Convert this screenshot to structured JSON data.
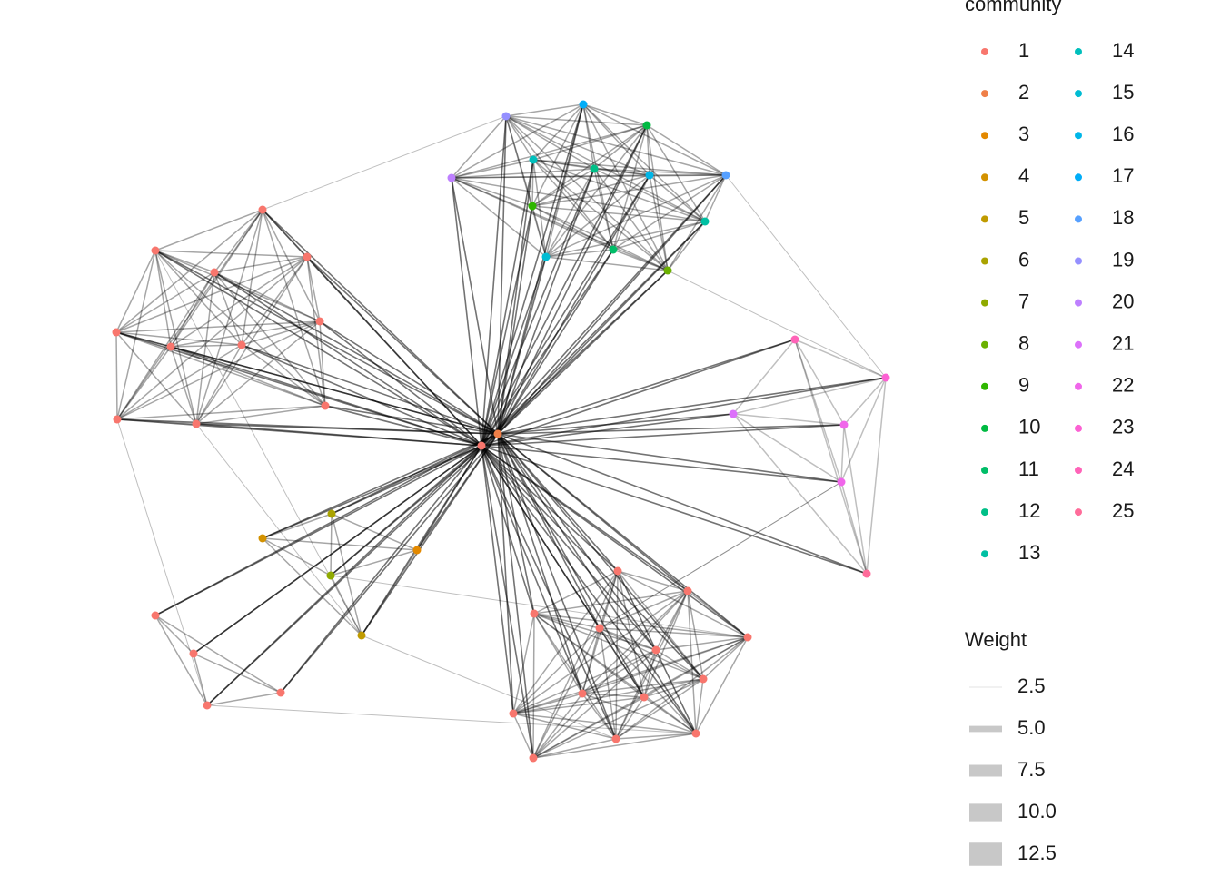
{
  "chart_data": {
    "type": "network",
    "legend_title": "community",
    "communities": [
      "1",
      "2",
      "3",
      "4",
      "5",
      "6",
      "7",
      "8",
      "9",
      "10",
      "11",
      "12",
      "13",
      "14",
      "15",
      "16",
      "17",
      "18",
      "19",
      "20",
      "21",
      "22",
      "23",
      "24",
      "25"
    ],
    "colors": [
      "#F8766D",
      "#EF7F48",
      "#E38900",
      "#D39200",
      "#C09B00",
      "#AAA300",
      "#8FAA00",
      "#6BB100",
      "#2FB600",
      "#00BA42",
      "#00BD68",
      "#00BF87",
      "#00C0A3",
      "#00BFBC",
      "#00BCD3",
      "#00B6E8",
      "#00ADF8",
      "#56A0FF",
      "#9590FF",
      "#BE80FF",
      "#DC71FA",
      "#F066EA",
      "#FC61D3",
      "#FF63B8",
      "#FF6C9A"
    ],
    "weight_title": "Weight",
    "weight_ticks": [
      2.5,
      {
        "value": 5,
        "label": "5.0"
      },
      7.5,
      {
        "value": 10,
        "label": "10.0"
      },
      12.5
    ],
    "edge_color": "#000000"
  }
}
